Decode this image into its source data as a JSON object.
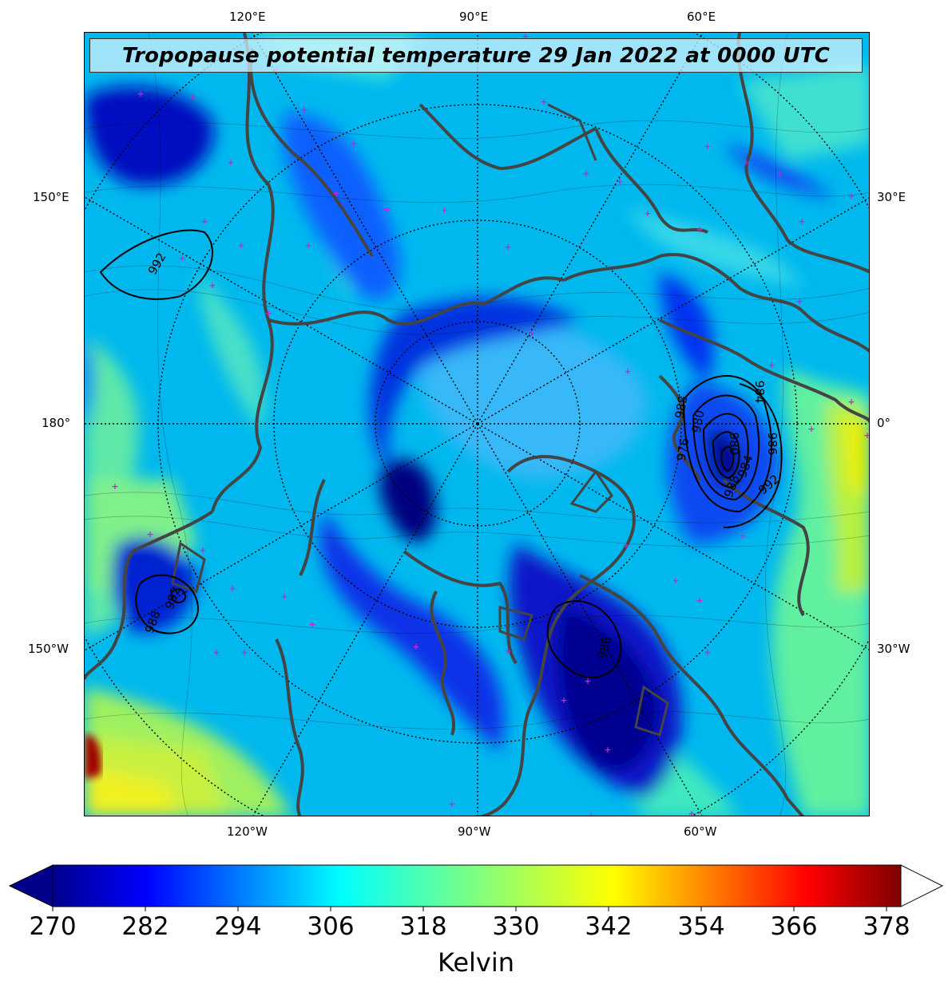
{
  "title": "Tropopause potential temperature 29 Jan 2022 at 0000 UTC",
  "lon_labels": {
    "top": [
      "120°E",
      "90°E",
      "60°E"
    ],
    "bottom": [
      "120°W",
      "90°W",
      "60°W"
    ],
    "left": [
      "150°E",
      "180°",
      "150°W"
    ],
    "right": [
      "30°E",
      "0°",
      "30°W"
    ]
  },
  "pressure_contours": [
    "992",
    "988",
    "984",
    "980",
    "976",
    "980",
    "986",
    "984",
    "988",
    "992",
    "988",
    "992",
    "986"
  ],
  "colorbar": {
    "ticks": [
      "270",
      "282",
      "294",
      "306",
      "318",
      "330",
      "342",
      "354",
      "366",
      "378"
    ],
    "label": "Kelvin",
    "range": [
      270,
      381
    ],
    "colormap": "jet",
    "extend": "both"
  },
  "colors": {
    "marker": "#d020d0",
    "coastline": "#444444",
    "low_cold": "#00008b",
    "warm": "#e8f000"
  }
}
